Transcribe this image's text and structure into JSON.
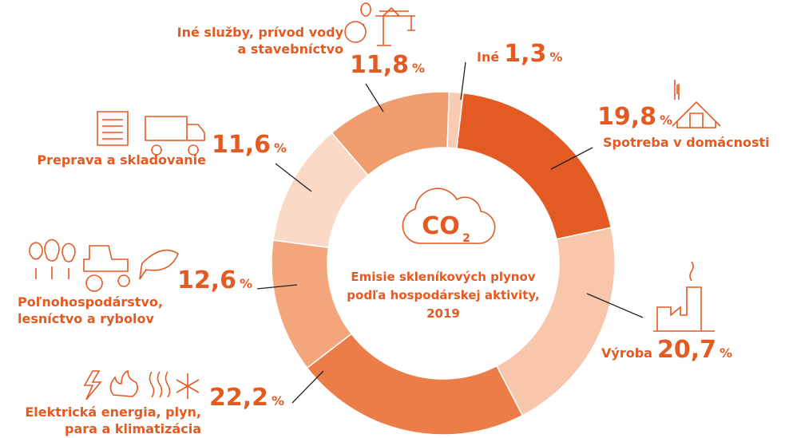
{
  "chart_data": {
    "type": "pie",
    "donut": true,
    "categories": [
      "Iné",
      "Spotreba v domácnosti",
      "Výroba",
      "Elektrická energia, plyn,\npara a klimatizácia",
      "Poľnohospodárstvo,\nlesníctvo a rybolov",
      "Preprava a skladovanie",
      "Iné služby, prívod vody\na stavebníctvo"
    ],
    "values": [
      1.3,
      19.8,
      20.7,
      22.2,
      12.6,
      11.6,
      11.8
    ],
    "value_labels": [
      "1,3",
      "19,8",
      "20,7",
      "22,2",
      "12,6",
      "11,6",
      "11,8"
    ],
    "unit": "%",
    "colors": [
      "#f9cbb3",
      "#e35a22",
      "#f8c7ab",
      "#ec7c48",
      "#f3a67b",
      "#fbd9c7",
      "#f09c6c"
    ],
    "center_icon": [
      "CO",
      "2"
    ],
    "center_text": [
      "Emisie skleníkových plynov",
      "podľa hospodárskej aktivity,",
      "2019"
    ]
  }
}
